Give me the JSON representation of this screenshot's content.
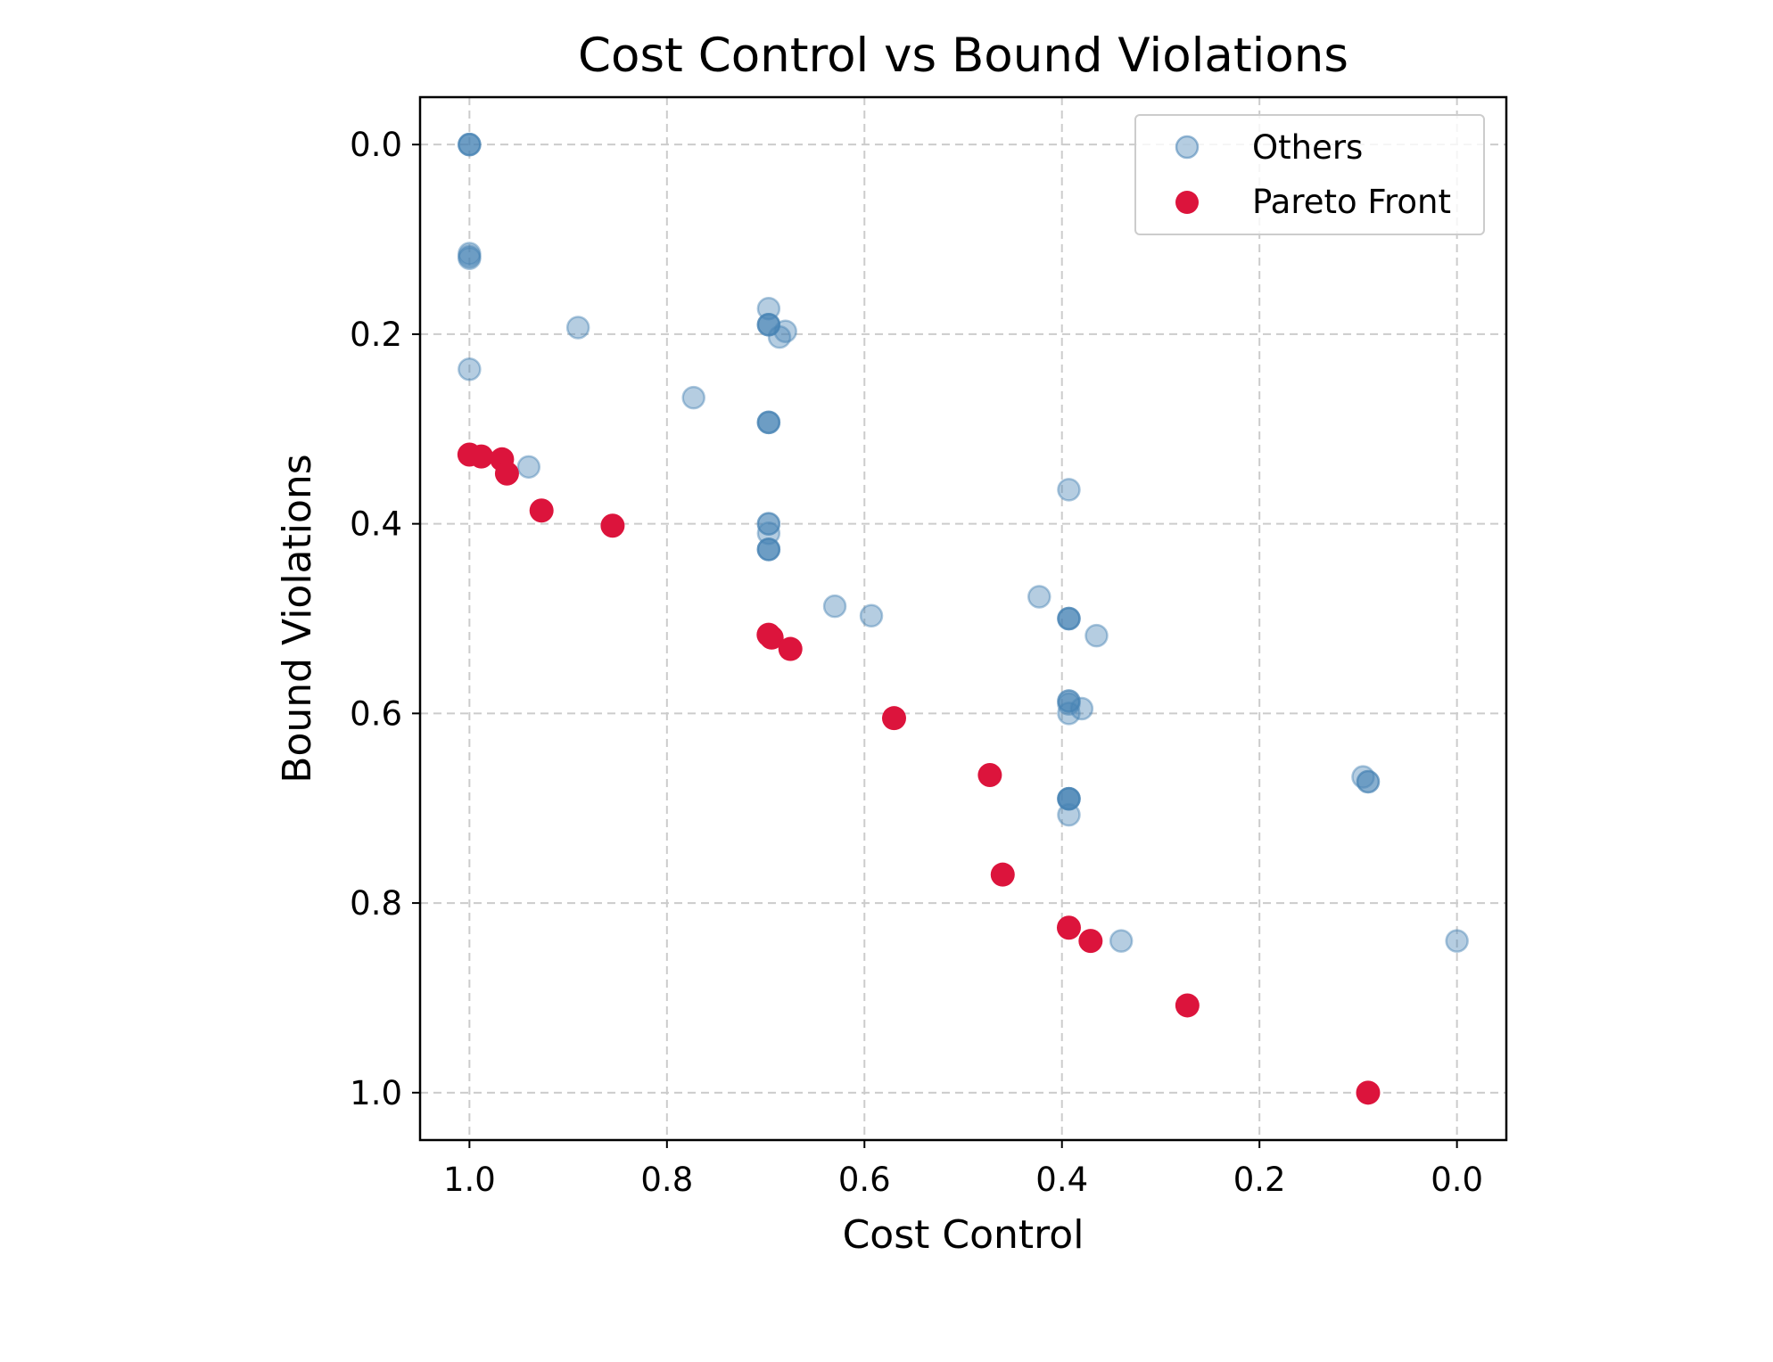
{
  "chart_data": {
    "type": "scatter",
    "title": "Cost Control vs Bound Violations",
    "xlabel": "Cost Control",
    "ylabel": "Bound Violations",
    "xlim": [
      1.05,
      -0.05
    ],
    "ylim": [
      1.05,
      -0.05
    ],
    "x_inverted": true,
    "y_inverted": true,
    "xticks": [
      1.0,
      0.8,
      0.6,
      0.4,
      0.2,
      0.0
    ],
    "yticks": [
      0.0,
      0.2,
      0.4,
      0.6,
      0.8,
      1.0
    ],
    "xtick_labels": [
      "1.0",
      "0.8",
      "0.6",
      "0.4",
      "0.2",
      "0.0"
    ],
    "ytick_labels": [
      "0.0",
      "0.2",
      "0.4",
      "0.6",
      "0.8",
      "1.0"
    ],
    "grid": true,
    "legend_position": "top-right",
    "series": [
      {
        "name": "Others",
        "color": "#4682b4",
        "alpha": 0.4,
        "points": [
          [
            1.0,
            0.0
          ],
          [
            1.0,
            0.0
          ],
          [
            1.0,
            0.0
          ],
          [
            1.0,
            0.115
          ],
          [
            1.0,
            0.12
          ],
          [
            1.0,
            0.118
          ],
          [
            1.0,
            0.237
          ],
          [
            0.89,
            0.193
          ],
          [
            0.773,
            0.267
          ],
          [
            0.94,
            0.34
          ],
          [
            0.697,
            0.173
          ],
          [
            0.697,
            0.19
          ],
          [
            0.697,
            0.19
          ],
          [
            0.697,
            0.19
          ],
          [
            0.686,
            0.203
          ],
          [
            0.68,
            0.197
          ],
          [
            0.697,
            0.293
          ],
          [
            0.697,
            0.293
          ],
          [
            0.697,
            0.293
          ],
          [
            0.697,
            0.4
          ],
          [
            0.697,
            0.4
          ],
          [
            0.697,
            0.41
          ],
          [
            0.697,
            0.427
          ],
          [
            0.697,
            0.427
          ],
          [
            0.697,
            0.427
          ],
          [
            0.63,
            0.487
          ],
          [
            0.593,
            0.497
          ],
          [
            0.393,
            0.364
          ],
          [
            0.423,
            0.477
          ],
          [
            0.393,
            0.5
          ],
          [
            0.393,
            0.5
          ],
          [
            0.393,
            0.5
          ],
          [
            0.365,
            0.518
          ],
          [
            0.393,
            0.587
          ],
          [
            0.393,
            0.587
          ],
          [
            0.393,
            0.59
          ],
          [
            0.393,
            0.6
          ],
          [
            0.38,
            0.595
          ],
          [
            0.393,
            0.69
          ],
          [
            0.393,
            0.69
          ],
          [
            0.393,
            0.69
          ],
          [
            0.393,
            0.69
          ],
          [
            0.393,
            0.707
          ],
          [
            0.34,
            0.84
          ],
          [
            0.095,
            0.667
          ],
          [
            0.09,
            0.672
          ],
          [
            0.09,
            0.672
          ],
          [
            0.0,
            0.84
          ]
        ]
      },
      {
        "name": "Pareto Front",
        "color": "#dc143c",
        "alpha": 1.0,
        "points": [
          [
            1.0,
            0.327
          ],
          [
            0.988,
            0.329
          ],
          [
            0.967,
            0.332
          ],
          [
            0.962,
            0.347
          ],
          [
            0.927,
            0.386
          ],
          [
            0.855,
            0.402
          ],
          [
            0.697,
            0.517
          ],
          [
            0.694,
            0.52
          ],
          [
            0.675,
            0.532
          ],
          [
            0.57,
            0.605
          ],
          [
            0.473,
            0.665
          ],
          [
            0.46,
            0.77
          ],
          [
            0.393,
            0.826
          ],
          [
            0.371,
            0.84
          ],
          [
            0.273,
            0.908
          ],
          [
            0.09,
            1.0
          ]
        ]
      }
    ]
  }
}
